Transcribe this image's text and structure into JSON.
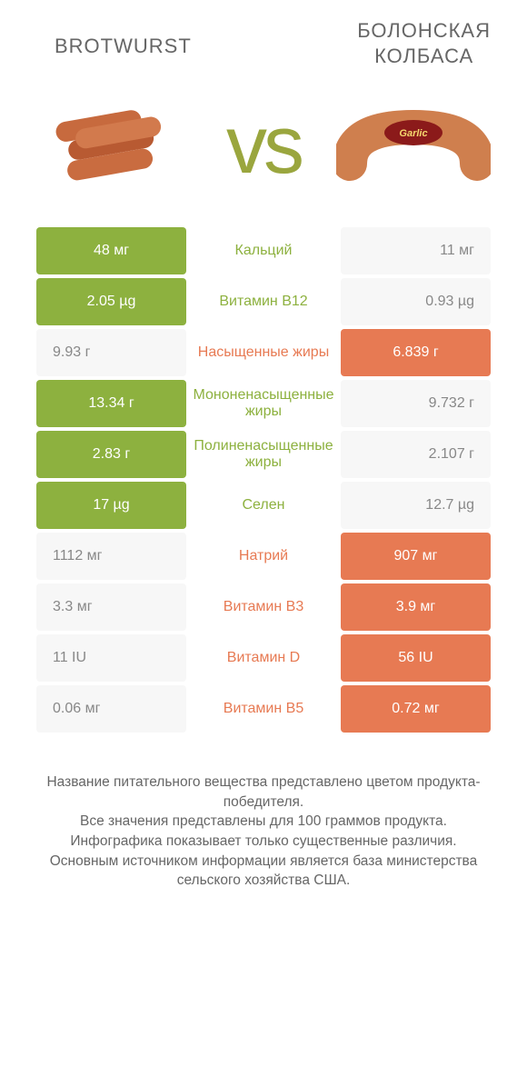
{
  "header": {
    "left_title": "BROTWURST",
    "right_title": "БОЛОНСКАЯ КОЛБАСА"
  },
  "vs_label": "vs",
  "colors": {
    "green": "#8db13f",
    "orange": "#e77a53",
    "text": "#666666",
    "loser_bg": "#f7f7f7",
    "loser_text": "#888888",
    "background": "#ffffff"
  },
  "rows": [
    {
      "label": "Кальций",
      "left": "48 мг",
      "right": "11 мг",
      "winner": "left"
    },
    {
      "label": "Витамин B12",
      "left": "2.05 µg",
      "right": "0.93 µg",
      "winner": "left"
    },
    {
      "label": "Насыщенные жиры",
      "left": "9.93 г",
      "right": "6.839 г",
      "winner": "right"
    },
    {
      "label": "Мононенасыщенные жиры",
      "left": "13.34 г",
      "right": "9.732 г",
      "winner": "left"
    },
    {
      "label": "Полиненасыщенные жиры",
      "left": "2.83 г",
      "right": "2.107 г",
      "winner": "left"
    },
    {
      "label": "Селен",
      "left": "17 µg",
      "right": "12.7 µg",
      "winner": "left"
    },
    {
      "label": "Натрий",
      "left": "1112 мг",
      "right": "907 мг",
      "winner": "right"
    },
    {
      "label": "Витамин B3",
      "left": "3.3 мг",
      "right": "3.9 мг",
      "winner": "right"
    },
    {
      "label": "Витамин D",
      "left": "11 IU",
      "right": "56 IU",
      "winner": "right"
    },
    {
      "label": "Витамин B5",
      "left": "0.06 мг",
      "right": "0.72 мг",
      "winner": "right"
    }
  ],
  "footer_lines": [
    "Название питательного вещества представлено цветом продукта-победителя.",
    "Все значения представлены для 100 граммов продукта.",
    "Инфографика показывает только существенные различия.",
    "Основным источником информации является база министерства сельского хозяйства США."
  ]
}
